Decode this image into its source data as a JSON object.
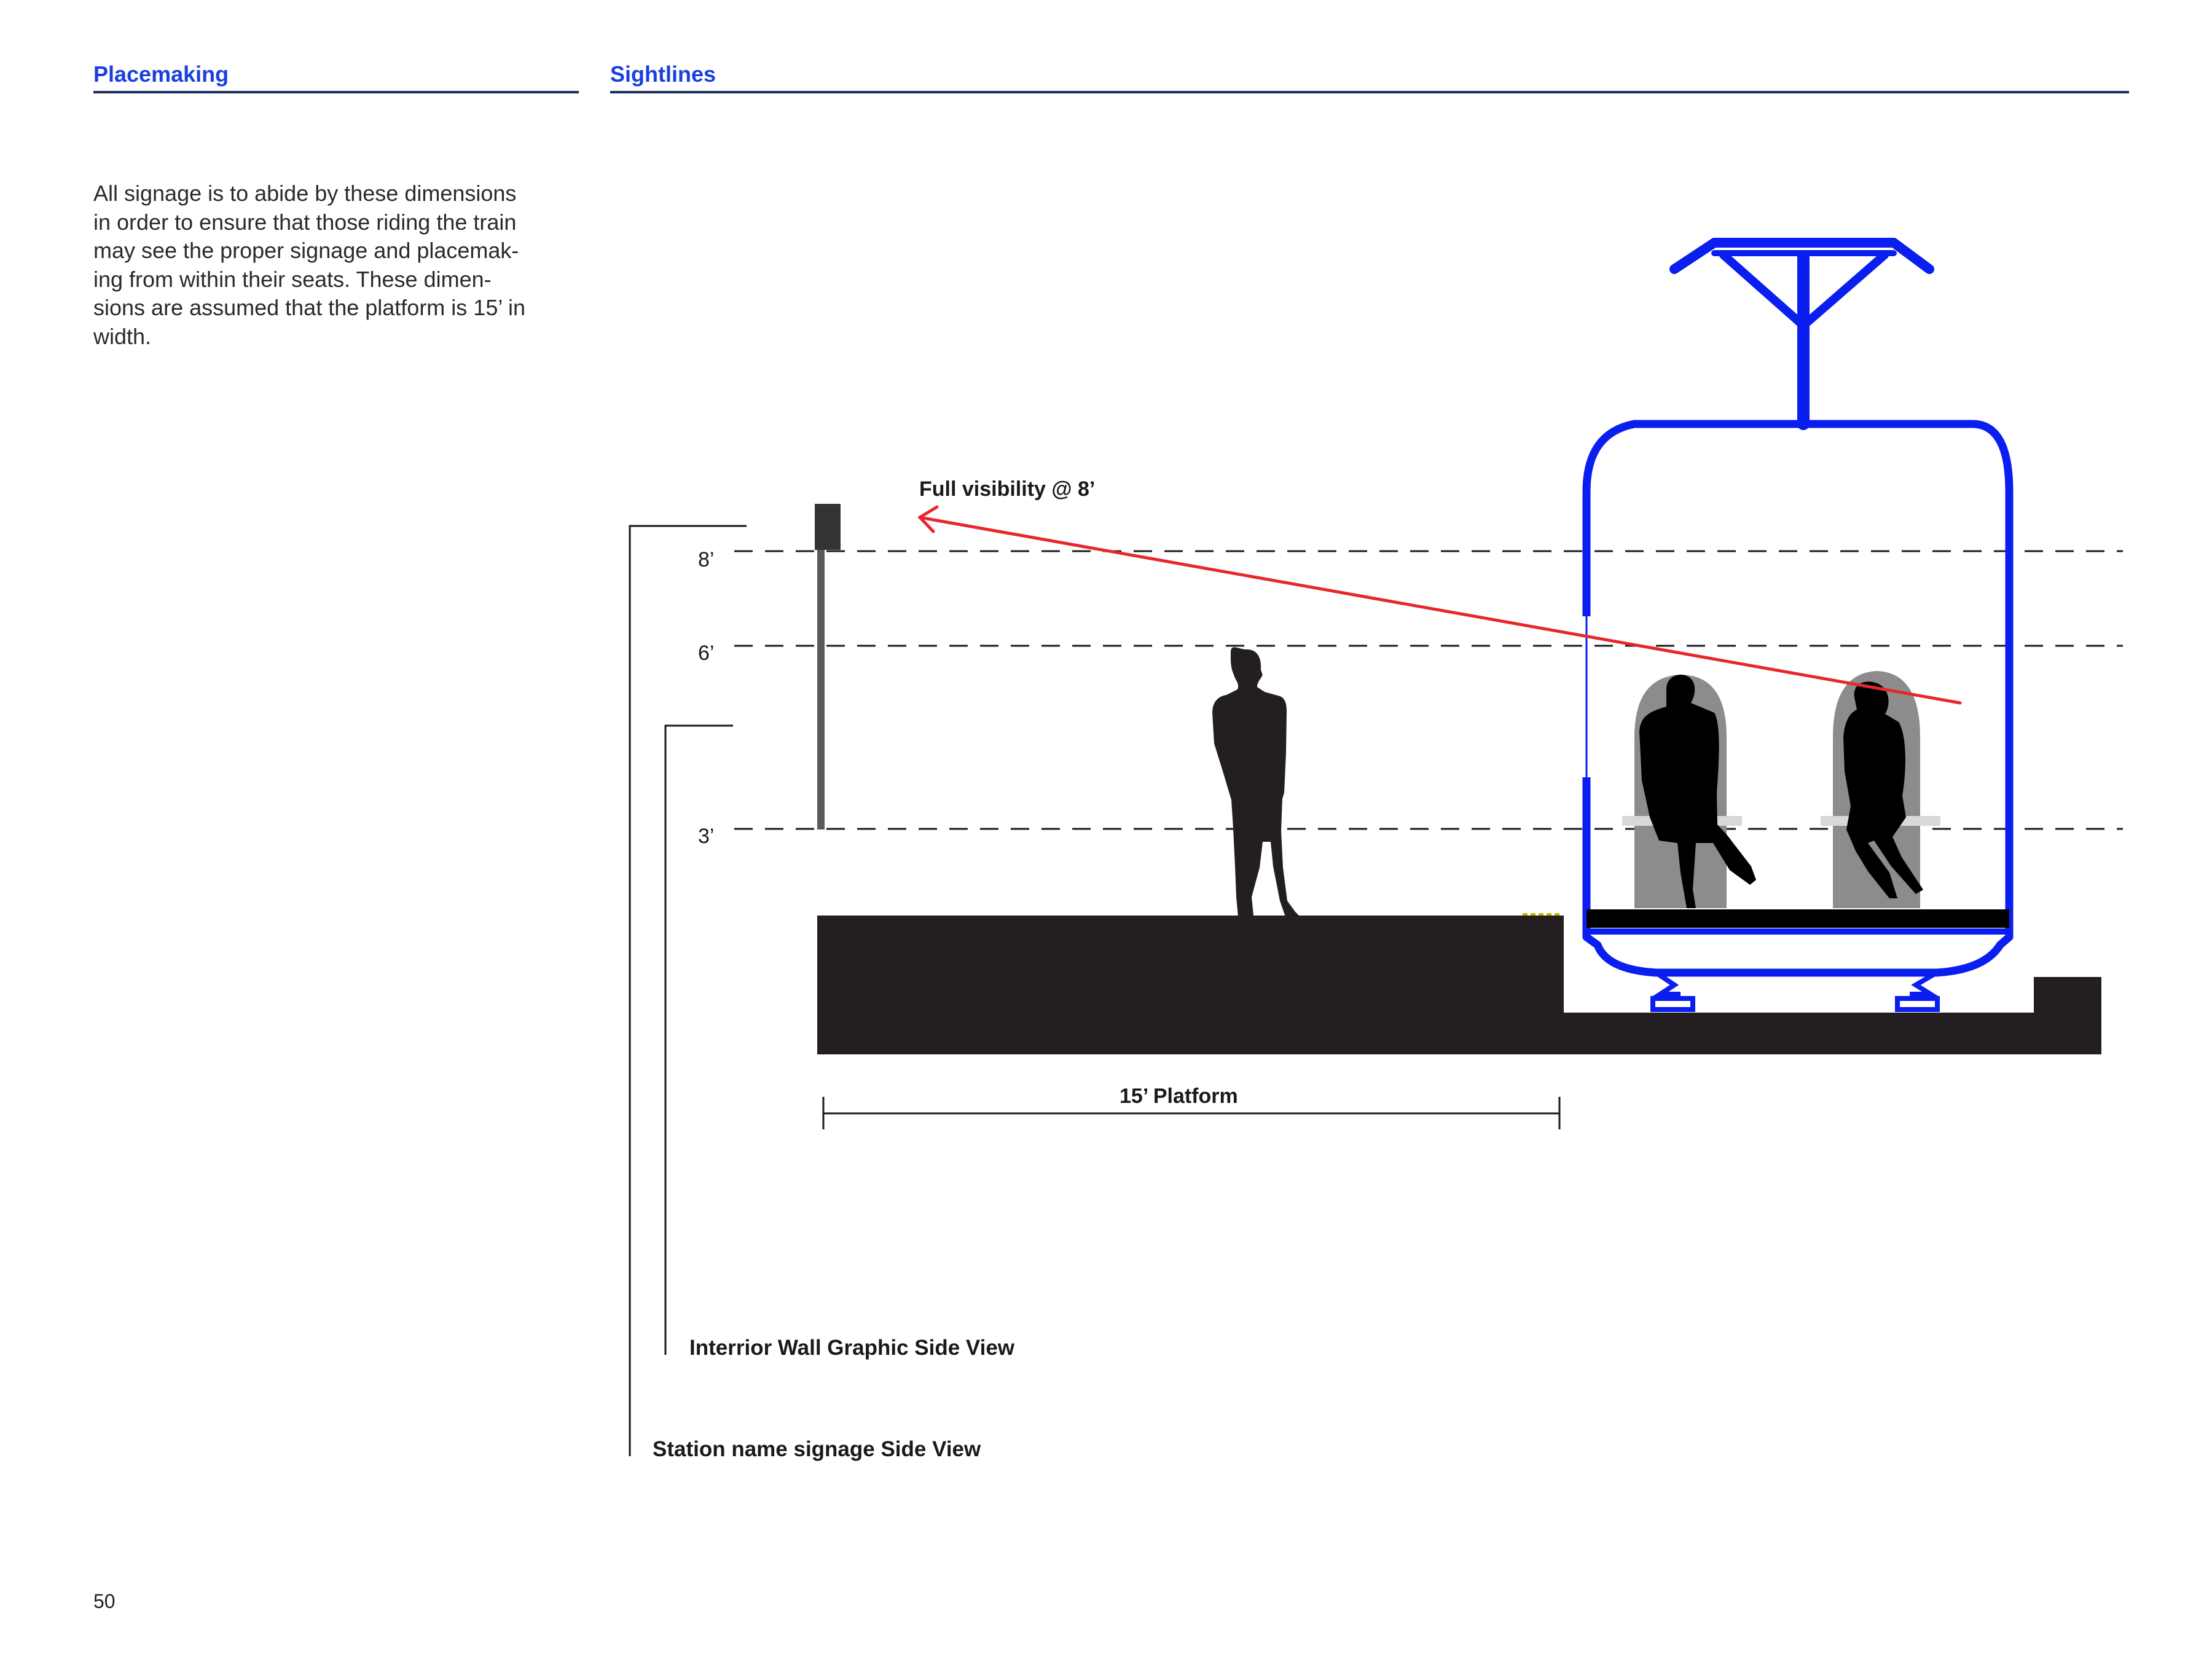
{
  "left_section": {
    "title": "Placemaking",
    "body": "All signage is to abide by these dimensions\nin order to ensure that those riding the train\nmay see the proper signage and placemak-\ning from within their seats. These dimen-\nsions are assumed that the platform is 15’ in\nwidth."
  },
  "right_section": {
    "title": "Sightlines"
  },
  "diagram": {
    "visibility_label": "Full visibility @ 8’",
    "height_labels": [
      "8’",
      "6’",
      "3’"
    ],
    "platform_label": "15’ Platform",
    "callout_interior": "Interrior Wall Graphic Side View",
    "callout_station": "Station name signage Side View"
  },
  "colors": {
    "accent_blue": "#1a3fe0",
    "rule_navy": "#1b2a5e",
    "train_blue": "#0a1ef0",
    "sightline_red": "#e8262c",
    "silhouette": "#231f20",
    "seat_gray": "#8c8c8c"
  },
  "page_number": "50"
}
